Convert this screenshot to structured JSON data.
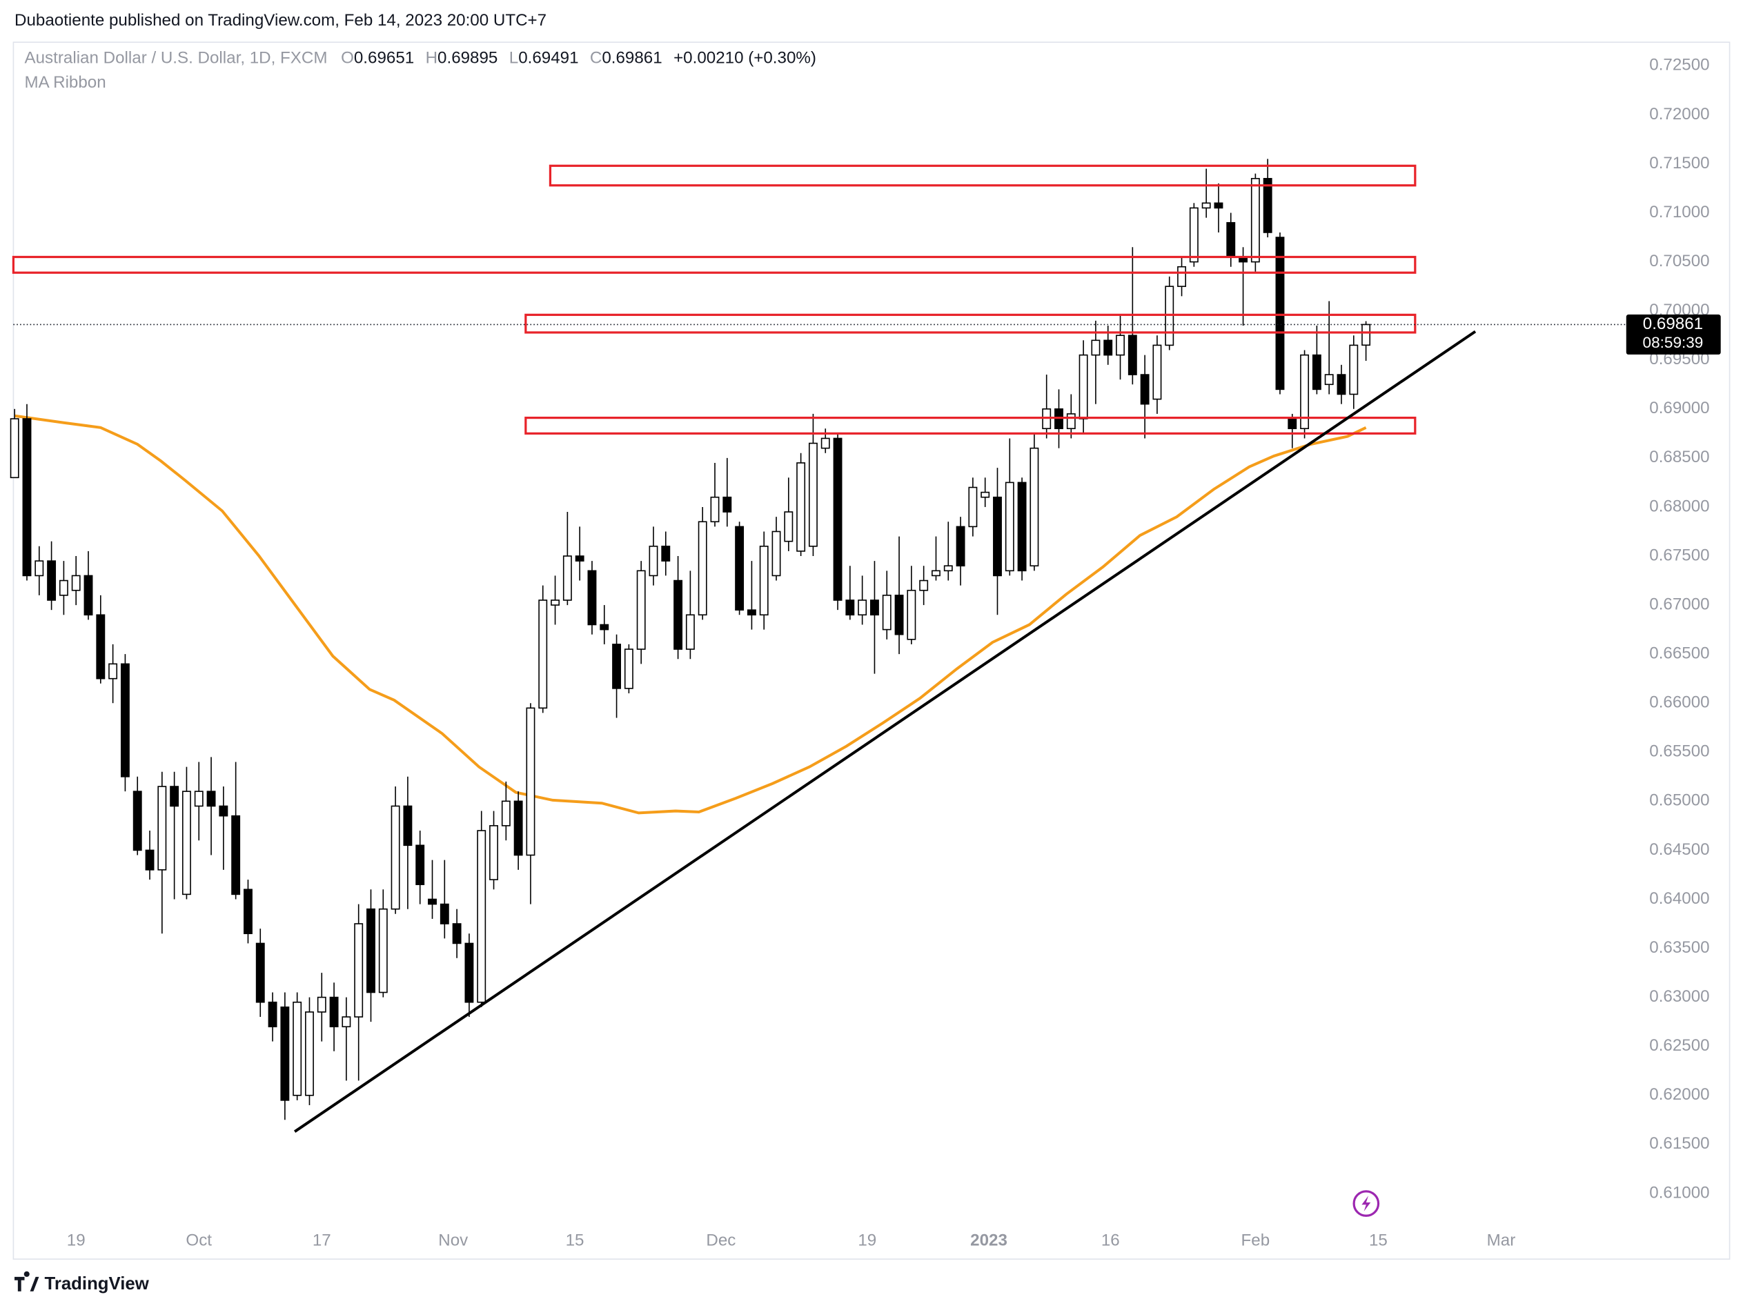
{
  "header": {
    "publisher": "Dubaotiente published on TradingView.com, Feb 14, 2023 20:00 UTC+7",
    "brand": "TradingView"
  },
  "chart_data": {
    "type": "candlestick",
    "title": "Australian Dollar / U.S. Dollar, 1D, FXCM",
    "ohlc_labels": [
      "O",
      "H",
      "L",
      "C"
    ],
    "change_label": "+0.00210 (+0.30%)",
    "indicator": "MA Ribbon",
    "countdown": "08:59:39",
    "up_color": "#ffffff",
    "down_color": "#000000",
    "open": [
      0.683,
      0.689,
      0.673,
      0.6745,
      0.671,
      0.6715,
      0.673,
      0.669,
      0.6625,
      0.664,
      0.651,
      0.645,
      0.643,
      0.6515,
      0.6405,
      0.6495,
      0.651,
      0.6495,
      0.6485,
      0.641,
      0.6355,
      0.6295,
      0.629,
      0.62,
      0.62,
      0.6285,
      0.63,
      0.627,
      0.628,
      0.639,
      0.6305,
      0.639,
      0.6495,
      0.6455,
      0.64,
      0.6395,
      0.6375,
      0.6355,
      0.6295,
      0.642,
      0.6475,
      0.65,
      0.6445,
      0.6595,
      0.67,
      0.6705,
      0.675,
      0.6735,
      0.668,
      0.666,
      0.6615,
      0.6655,
      0.673,
      0.676,
      0.6725,
      0.6655,
      0.669,
      0.6785,
      0.681,
      0.678,
      0.6695,
      0.669,
      0.673,
      0.6765,
      0.6755,
      0.676,
      0.686,
      0.687,
      0.6705,
      0.669,
      0.6705,
      0.6675,
      0.671,
      0.6665,
      0.6715,
      0.673,
      0.6735,
      0.678,
      0.678,
      0.681,
      0.681,
      0.6735,
      0.6825,
      0.674,
      0.688,
      0.69,
      0.688,
      0.689,
      0.6955,
      0.697,
      0.6955,
      0.6975,
      0.6935,
      0.691,
      0.6965,
      0.7025,
      0.705,
      0.7105,
      0.711,
      0.709,
      0.7055,
      0.705,
      0.7135,
      0.7075,
      0.689,
      0.688,
      0.6955,
      0.6925,
      0.6935,
      0.6915,
      0.69651
    ],
    "high": [
      0.69,
      0.6905,
      0.676,
      0.6765,
      0.6745,
      0.675,
      0.6755,
      0.671,
      0.666,
      0.665,
      0.6525,
      0.647,
      0.653,
      0.653,
      0.6535,
      0.654,
      0.6545,
      0.6515,
      0.654,
      0.642,
      0.637,
      0.6305,
      0.6305,
      0.6305,
      0.63,
      0.6325,
      0.6315,
      0.63,
      0.6395,
      0.641,
      0.641,
      0.6515,
      0.6525,
      0.647,
      0.644,
      0.644,
      0.639,
      0.6365,
      0.649,
      0.649,
      0.652,
      0.651,
      0.66,
      0.672,
      0.673,
      0.6795,
      0.678,
      0.6745,
      0.67,
      0.667,
      0.666,
      0.6745,
      0.678,
      0.6775,
      0.675,
      0.6735,
      0.68,
      0.6845,
      0.685,
      0.6785,
      0.6745,
      0.6775,
      0.679,
      0.683,
      0.6855,
      0.6895,
      0.688,
      0.6875,
      0.674,
      0.673,
      0.6745,
      0.6735,
      0.677,
      0.674,
      0.674,
      0.677,
      0.6785,
      0.679,
      0.683,
      0.683,
      0.684,
      0.687,
      0.683,
      0.6875,
      0.6935,
      0.692,
      0.6915,
      0.697,
      0.699,
      0.6985,
      0.6995,
      0.7065,
      0.6955,
      0.6975,
      0.7035,
      0.7055,
      0.711,
      0.7145,
      0.713,
      0.71,
      0.7065,
      0.714,
      0.7155,
      0.708,
      0.6895,
      0.696,
      0.6985,
      0.701,
      0.6945,
      0.6975,
      0.69895
    ],
    "low": [
      0.683,
      0.6725,
      0.671,
      0.6695,
      0.669,
      0.67,
      0.6685,
      0.662,
      0.66,
      0.651,
      0.6445,
      0.642,
      0.6365,
      0.64,
      0.64,
      0.646,
      0.6445,
      0.643,
      0.64,
      0.6355,
      0.628,
      0.6255,
      0.6175,
      0.6195,
      0.619,
      0.6255,
      0.6245,
      0.6215,
      0.6215,
      0.6275,
      0.63,
      0.6385,
      0.639,
      0.6395,
      0.638,
      0.636,
      0.634,
      0.628,
      0.629,
      0.641,
      0.646,
      0.643,
      0.6395,
      0.659,
      0.668,
      0.67,
      0.6725,
      0.667,
      0.666,
      0.6585,
      0.661,
      0.664,
      0.672,
      0.673,
      0.6645,
      0.6645,
      0.6685,
      0.678,
      0.678,
      0.669,
      0.6675,
      0.6675,
      0.6725,
      0.6755,
      0.675,
      0.675,
      0.6855,
      0.6695,
      0.6685,
      0.668,
      0.663,
      0.6665,
      0.665,
      0.666,
      0.67,
      0.6725,
      0.6725,
      0.672,
      0.677,
      0.68,
      0.669,
      0.673,
      0.6725,
      0.6735,
      0.687,
      0.686,
      0.687,
      0.6875,
      0.6905,
      0.6945,
      0.693,
      0.6925,
      0.687,
      0.6895,
      0.696,
      0.7015,
      0.7045,
      0.7095,
      0.708,
      0.7045,
      0.6985,
      0.704,
      0.7075,
      0.6915,
      0.686,
      0.687,
      0.6915,
      0.6915,
      0.6905,
      0.69,
      0.69491
    ],
    "close": [
      0.689,
      0.673,
      0.6745,
      0.6705,
      0.6725,
      0.673,
      0.669,
      0.6625,
      0.664,
      0.6525,
      0.645,
      0.643,
      0.6515,
      0.6495,
      0.651,
      0.651,
      0.6495,
      0.6485,
      0.6405,
      0.6365,
      0.6295,
      0.627,
      0.6195,
      0.6295,
      0.6285,
      0.63,
      0.627,
      0.628,
      0.6375,
      0.6305,
      0.639,
      0.6495,
      0.6455,
      0.6415,
      0.6395,
      0.6375,
      0.6355,
      0.6295,
      0.647,
      0.6475,
      0.65,
      0.6445,
      0.6595,
      0.6705,
      0.6705,
      0.675,
      0.6745,
      0.668,
      0.6675,
      0.6615,
      0.6655,
      0.6735,
      0.676,
      0.6745,
      0.6655,
      0.669,
      0.6785,
      0.681,
      0.6795,
      0.6695,
      0.669,
      0.676,
      0.6775,
      0.6795,
      0.6845,
      0.6865,
      0.687,
      0.6705,
      0.669,
      0.6705,
      0.669,
      0.671,
      0.667,
      0.6715,
      0.6725,
      0.6735,
      0.674,
      0.674,
      0.682,
      0.6815,
      0.673,
      0.6825,
      0.6735,
      0.686,
      0.69,
      0.688,
      0.6895,
      0.6955,
      0.697,
      0.6955,
      0.6975,
      0.6935,
      0.6905,
      0.6965,
      0.7025,
      0.7045,
      0.7105,
      0.711,
      0.7105,
      0.7055,
      0.705,
      0.7135,
      0.708,
      0.692,
      0.688,
      0.6955,
      0.692,
      0.6935,
      0.6915,
      0.6965,
      0.69861
    ],
    "ma": {
      "color": "#f59d1a",
      "x": [
        0,
        4,
        7,
        10,
        11.9,
        13.9,
        16.9,
        19.9,
        22.9,
        25.9,
        28.9,
        30.9,
        34.8,
        37.8,
        40.8,
        43.8,
        47.8,
        50.8,
        53.8,
        55.7,
        58.7,
        61.7,
        64.7,
        67.7,
        70.7,
        73.7,
        76.7,
        79.6,
        82.6,
        85.6,
        88.6,
        91.6,
        94.6,
        97.6,
        100.5,
        102.5,
        105.5,
        108.5,
        110
      ],
      "values": [
        0.6893,
        0.6886,
        0.6881,
        0.6864,
        0.6847,
        0.6827,
        0.6796,
        0.675,
        0.6699,
        0.6648,
        0.6614,
        0.6603,
        0.6569,
        0.6535,
        0.6509,
        0.6501,
        0.6498,
        0.6488,
        0.649,
        0.6489,
        0.6503,
        0.6518,
        0.6535,
        0.6556,
        0.658,
        0.6605,
        0.6635,
        0.6662,
        0.668,
        0.6711,
        0.6739,
        0.6771,
        0.679,
        0.6818,
        0.6841,
        0.6852,
        0.6864,
        0.6872,
        0.6881
      ]
    },
    "zone_color": "#e8232a",
    "zones": [
      {
        "x": [
          43.6,
          114
        ],
        "y": [
          0.7128,
          0.7148
        ]
      },
      {
        "x": [
          -0.1,
          114
        ],
        "y": [
          0.7039,
          0.7055
        ]
      },
      {
        "x": [
          41.6,
          114
        ],
        "y": [
          0.6978,
          0.6996
        ]
      },
      {
        "x": [
          41.6,
          114
        ],
        "y": [
          0.6875,
          0.6891
        ]
      }
    ],
    "trendline": {
      "color": "#000000",
      "x": [
        22.8,
        118.9
      ],
      "y": [
        0.6163,
        0.6979
      ]
    },
    "xlim": [
      -0.1,
      139.6
    ],
    "ylim": [
      0.6067,
      0.7274
    ],
    "xticks": [
      {
        "value": 5,
        "label": "19"
      },
      {
        "value": 15,
        "label": "Oct"
      },
      {
        "value": 25,
        "label": "17"
      },
      {
        "value": 35.7,
        "label": "Nov"
      },
      {
        "value": 45.6,
        "label": "15"
      },
      {
        "value": 57.5,
        "label": "Dec"
      },
      {
        "value": 69.4,
        "label": "19"
      },
      {
        "value": 79.3,
        "label": "2023"
      },
      {
        "value": 89.2,
        "label": "16"
      },
      {
        "value": 101,
        "label": "Feb"
      },
      {
        "value": 111,
        "label": "15"
      },
      {
        "value": 121,
        "label": "Mar"
      }
    ],
    "yticks": [
      {
        "value": 0.725,
        "label": "0.72500"
      },
      {
        "value": 0.72,
        "label": "0.72000"
      },
      {
        "value": 0.715,
        "label": "0.71500"
      },
      {
        "value": 0.71,
        "label": "0.71000"
      },
      {
        "value": 0.705,
        "label": "0.70500"
      },
      {
        "value": 0.7,
        "label": "0.70000"
      },
      {
        "value": 0.695,
        "label": "0.69500"
      },
      {
        "value": 0.69,
        "label": "0.69000"
      },
      {
        "value": 0.685,
        "label": "0.68500"
      },
      {
        "value": 0.68,
        "label": "0.68000"
      },
      {
        "value": 0.675,
        "label": "0.67500"
      },
      {
        "value": 0.67,
        "label": "0.67000"
      },
      {
        "value": 0.665,
        "label": "0.66500"
      },
      {
        "value": 0.66,
        "label": "0.66000"
      },
      {
        "value": 0.655,
        "label": "0.65500"
      },
      {
        "value": 0.65,
        "label": "0.65000"
      },
      {
        "value": 0.645,
        "label": "0.64500"
      },
      {
        "value": 0.64,
        "label": "0.64000"
      },
      {
        "value": 0.635,
        "label": "0.63500"
      },
      {
        "value": 0.63,
        "label": "0.63000"
      },
      {
        "value": 0.625,
        "label": "0.62500"
      },
      {
        "value": 0.62,
        "label": "0.62000"
      },
      {
        "value": 0.615,
        "label": "0.61500"
      },
      {
        "value": 0.61,
        "label": "0.61000"
      }
    ]
  }
}
